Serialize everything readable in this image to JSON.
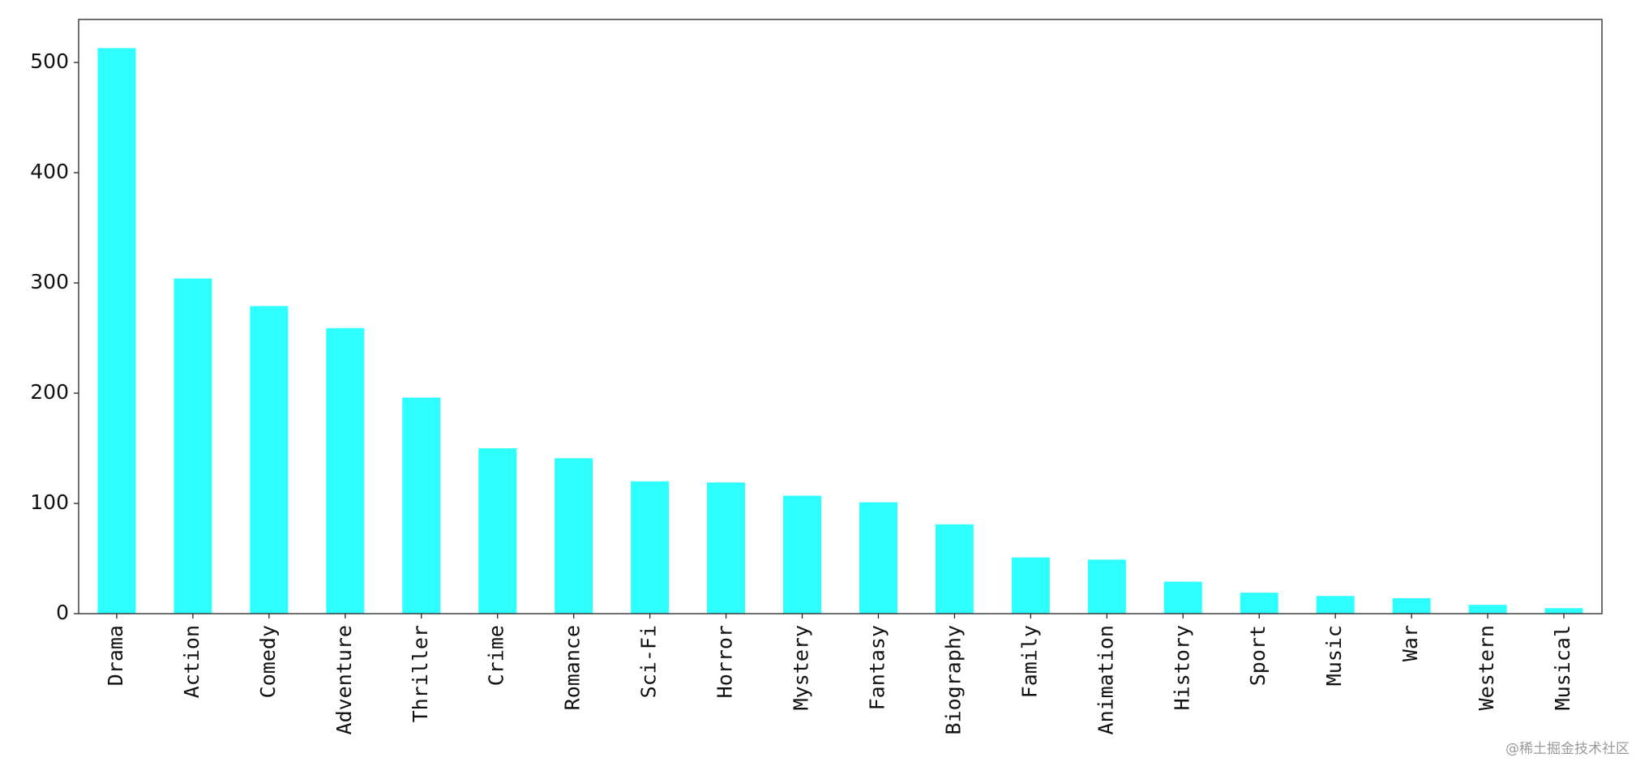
{
  "chart_data": {
    "type": "bar",
    "categories": [
      "Drama",
      "Action",
      "Comedy",
      "Adventure",
      "Thriller",
      "Crime",
      "Romance",
      "Sci-Fi",
      "Horror",
      "Mystery",
      "Fantasy",
      "Biography",
      "Family",
      "Animation",
      "History",
      "Sport",
      "Music",
      "War",
      "Western",
      "Musical"
    ],
    "values": [
      513,
      304,
      279,
      259,
      196,
      150,
      141,
      120,
      119,
      107,
      101,
      81,
      51,
      49,
      29,
      19,
      16,
      14,
      8,
      5
    ],
    "color": "#2dfefe",
    "ylim": [
      0,
      539
    ],
    "yticks": [
      0,
      100,
      200,
      300,
      400,
      500
    ],
    "grid": false,
    "watermark": "@稀土掘金技术社区"
  }
}
